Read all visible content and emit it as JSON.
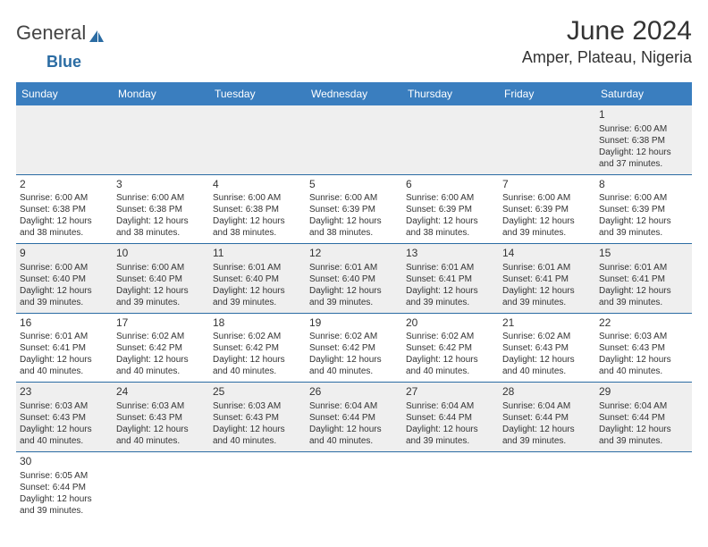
{
  "header": {
    "logo_part1": "General",
    "logo_part2": "Blue",
    "month_title": "June 2024",
    "location": "Amper, Plateau, Nigeria"
  },
  "colors": {
    "header_bar": "#3a7ebf",
    "header_text": "#ffffff",
    "row_alt_bg": "#efefef",
    "row_border": "#2b6ca3",
    "logo_accent": "#2b6ca3",
    "body_text": "#333333",
    "background": "#ffffff"
  },
  "day_headers": [
    "Sunday",
    "Monday",
    "Tuesday",
    "Wednesday",
    "Thursday",
    "Friday",
    "Saturday"
  ],
  "weeks": [
    {
      "alt": true,
      "cells": [
        {
          "blank": true
        },
        {
          "blank": true
        },
        {
          "blank": true
        },
        {
          "blank": true
        },
        {
          "blank": true
        },
        {
          "blank": true
        },
        {
          "day": "1",
          "sunrise": "Sunrise: 6:00 AM",
          "sunset": "Sunset: 6:38 PM",
          "dl1": "Daylight: 12 hours",
          "dl2": "and 37 minutes."
        }
      ]
    },
    {
      "alt": false,
      "cells": [
        {
          "day": "2",
          "sunrise": "Sunrise: 6:00 AM",
          "sunset": "Sunset: 6:38 PM",
          "dl1": "Daylight: 12 hours",
          "dl2": "and 38 minutes."
        },
        {
          "day": "3",
          "sunrise": "Sunrise: 6:00 AM",
          "sunset": "Sunset: 6:38 PM",
          "dl1": "Daylight: 12 hours",
          "dl2": "and 38 minutes."
        },
        {
          "day": "4",
          "sunrise": "Sunrise: 6:00 AM",
          "sunset": "Sunset: 6:38 PM",
          "dl1": "Daylight: 12 hours",
          "dl2": "and 38 minutes."
        },
        {
          "day": "5",
          "sunrise": "Sunrise: 6:00 AM",
          "sunset": "Sunset: 6:39 PM",
          "dl1": "Daylight: 12 hours",
          "dl2": "and 38 minutes."
        },
        {
          "day": "6",
          "sunrise": "Sunrise: 6:00 AM",
          "sunset": "Sunset: 6:39 PM",
          "dl1": "Daylight: 12 hours",
          "dl2": "and 38 minutes."
        },
        {
          "day": "7",
          "sunrise": "Sunrise: 6:00 AM",
          "sunset": "Sunset: 6:39 PM",
          "dl1": "Daylight: 12 hours",
          "dl2": "and 39 minutes."
        },
        {
          "day": "8",
          "sunrise": "Sunrise: 6:00 AM",
          "sunset": "Sunset: 6:39 PM",
          "dl1": "Daylight: 12 hours",
          "dl2": "and 39 minutes."
        }
      ]
    },
    {
      "alt": true,
      "cells": [
        {
          "day": "9",
          "sunrise": "Sunrise: 6:00 AM",
          "sunset": "Sunset: 6:40 PM",
          "dl1": "Daylight: 12 hours",
          "dl2": "and 39 minutes."
        },
        {
          "day": "10",
          "sunrise": "Sunrise: 6:00 AM",
          "sunset": "Sunset: 6:40 PM",
          "dl1": "Daylight: 12 hours",
          "dl2": "and 39 minutes."
        },
        {
          "day": "11",
          "sunrise": "Sunrise: 6:01 AM",
          "sunset": "Sunset: 6:40 PM",
          "dl1": "Daylight: 12 hours",
          "dl2": "and 39 minutes."
        },
        {
          "day": "12",
          "sunrise": "Sunrise: 6:01 AM",
          "sunset": "Sunset: 6:40 PM",
          "dl1": "Daylight: 12 hours",
          "dl2": "and 39 minutes."
        },
        {
          "day": "13",
          "sunrise": "Sunrise: 6:01 AM",
          "sunset": "Sunset: 6:41 PM",
          "dl1": "Daylight: 12 hours",
          "dl2": "and 39 minutes."
        },
        {
          "day": "14",
          "sunrise": "Sunrise: 6:01 AM",
          "sunset": "Sunset: 6:41 PM",
          "dl1": "Daylight: 12 hours",
          "dl2": "and 39 minutes."
        },
        {
          "day": "15",
          "sunrise": "Sunrise: 6:01 AM",
          "sunset": "Sunset: 6:41 PM",
          "dl1": "Daylight: 12 hours",
          "dl2": "and 39 minutes."
        }
      ]
    },
    {
      "alt": false,
      "cells": [
        {
          "day": "16",
          "sunrise": "Sunrise: 6:01 AM",
          "sunset": "Sunset: 6:41 PM",
          "dl1": "Daylight: 12 hours",
          "dl2": "and 40 minutes."
        },
        {
          "day": "17",
          "sunrise": "Sunrise: 6:02 AM",
          "sunset": "Sunset: 6:42 PM",
          "dl1": "Daylight: 12 hours",
          "dl2": "and 40 minutes."
        },
        {
          "day": "18",
          "sunrise": "Sunrise: 6:02 AM",
          "sunset": "Sunset: 6:42 PM",
          "dl1": "Daylight: 12 hours",
          "dl2": "and 40 minutes."
        },
        {
          "day": "19",
          "sunrise": "Sunrise: 6:02 AM",
          "sunset": "Sunset: 6:42 PM",
          "dl1": "Daylight: 12 hours",
          "dl2": "and 40 minutes."
        },
        {
          "day": "20",
          "sunrise": "Sunrise: 6:02 AM",
          "sunset": "Sunset: 6:42 PM",
          "dl1": "Daylight: 12 hours",
          "dl2": "and 40 minutes."
        },
        {
          "day": "21",
          "sunrise": "Sunrise: 6:02 AM",
          "sunset": "Sunset: 6:43 PM",
          "dl1": "Daylight: 12 hours",
          "dl2": "and 40 minutes."
        },
        {
          "day": "22",
          "sunrise": "Sunrise: 6:03 AM",
          "sunset": "Sunset: 6:43 PM",
          "dl1": "Daylight: 12 hours",
          "dl2": "and 40 minutes."
        }
      ]
    },
    {
      "alt": true,
      "cells": [
        {
          "day": "23",
          "sunrise": "Sunrise: 6:03 AM",
          "sunset": "Sunset: 6:43 PM",
          "dl1": "Daylight: 12 hours",
          "dl2": "and 40 minutes."
        },
        {
          "day": "24",
          "sunrise": "Sunrise: 6:03 AM",
          "sunset": "Sunset: 6:43 PM",
          "dl1": "Daylight: 12 hours",
          "dl2": "and 40 minutes."
        },
        {
          "day": "25",
          "sunrise": "Sunrise: 6:03 AM",
          "sunset": "Sunset: 6:43 PM",
          "dl1": "Daylight: 12 hours",
          "dl2": "and 40 minutes."
        },
        {
          "day": "26",
          "sunrise": "Sunrise: 6:04 AM",
          "sunset": "Sunset: 6:44 PM",
          "dl1": "Daylight: 12 hours",
          "dl2": "and 40 minutes."
        },
        {
          "day": "27",
          "sunrise": "Sunrise: 6:04 AM",
          "sunset": "Sunset: 6:44 PM",
          "dl1": "Daylight: 12 hours",
          "dl2": "and 39 minutes."
        },
        {
          "day": "28",
          "sunrise": "Sunrise: 6:04 AM",
          "sunset": "Sunset: 6:44 PM",
          "dl1": "Daylight: 12 hours",
          "dl2": "and 39 minutes."
        },
        {
          "day": "29",
          "sunrise": "Sunrise: 6:04 AM",
          "sunset": "Sunset: 6:44 PM",
          "dl1": "Daylight: 12 hours",
          "dl2": "and 39 minutes."
        }
      ]
    },
    {
      "alt": false,
      "cells": [
        {
          "day": "30",
          "sunrise": "Sunrise: 6:05 AM",
          "sunset": "Sunset: 6:44 PM",
          "dl1": "Daylight: 12 hours",
          "dl2": "and 39 minutes."
        },
        {
          "blank": true
        },
        {
          "blank": true
        },
        {
          "blank": true
        },
        {
          "blank": true
        },
        {
          "blank": true
        },
        {
          "blank": true
        }
      ]
    }
  ]
}
